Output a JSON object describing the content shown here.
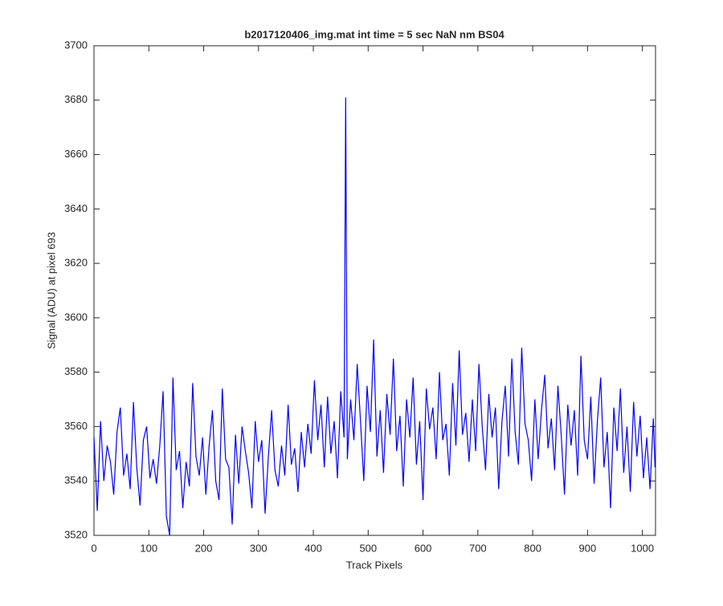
{
  "chart_data": {
    "type": "line",
    "title": "b2017120406_img.mat int time = 5 sec  NaN nm BS04",
    "xlabel": "Track Pixels",
    "ylabel": "Signal (ADU) at pixel 693",
    "xlim": [
      0,
      1024
    ],
    "ylim": [
      3520,
      3700
    ],
    "xticks": [
      0,
      100,
      200,
      300,
      400,
      500,
      600,
      700,
      800,
      900,
      1000
    ],
    "yticks": [
      3520,
      3540,
      3560,
      3580,
      3600,
      3620,
      3640,
      3660,
      3680,
      3700
    ],
    "grid": false,
    "series": [
      {
        "color": "#0000ff",
        "x": [
          0,
          6,
          12,
          18,
          24,
          30,
          36,
          42,
          48,
          54,
          60,
          66,
          72,
          78,
          84,
          90,
          96,
          102,
          108,
          114,
          120,
          126,
          132,
          138,
          144,
          150,
          156,
          162,
          168,
          174,
          180,
          186,
          192,
          198,
          204,
          210,
          216,
          222,
          228,
          234,
          240,
          246,
          252,
          258,
          264,
          270,
          276,
          282,
          288,
          294,
          300,
          306,
          312,
          318,
          324,
          330,
          336,
          342,
          348,
          354,
          360,
          366,
          372,
          378,
          384,
          390,
          396,
          402,
          408,
          414,
          420,
          426,
          432,
          438,
          444,
          450,
          456,
          459,
          462,
          468,
          474,
          480,
          486,
          492,
          498,
          504,
          510,
          516,
          522,
          528,
          534,
          540,
          546,
          552,
          558,
          564,
          570,
          576,
          582,
          588,
          594,
          600,
          606,
          612,
          618,
          624,
          630,
          636,
          642,
          648,
          654,
          660,
          666,
          672,
          678,
          684,
          690,
          696,
          702,
          708,
          714,
          720,
          726,
          732,
          738,
          744,
          750,
          756,
          762,
          768,
          774,
          780,
          786,
          792,
          798,
          804,
          810,
          816,
          822,
          828,
          834,
          840,
          846,
          852,
          858,
          864,
          870,
          876,
          882,
          888,
          894,
          900,
          906,
          912,
          918,
          924,
          930,
          936,
          942,
          948,
          954,
          960,
          966,
          972,
          978,
          984,
          990,
          996,
          1002,
          1008,
          1014,
          1020,
          1023
        ],
        "values": [
          3556,
          3529,
          3562,
          3540,
          3553,
          3547,
          3535,
          3558,
          3567,
          3542,
          3550,
          3537,
          3569,
          3545,
          3531,
          3555,
          3560,
          3541,
          3548,
          3539,
          3553,
          3573,
          3527,
          3520,
          3578,
          3544,
          3551,
          3530,
          3547,
          3538,
          3576,
          3549,
          3542,
          3556,
          3535,
          3553,
          3566,
          3540,
          3533,
          3574,
          3548,
          3545,
          3524,
          3557,
          3539,
          3560,
          3551,
          3543,
          3530,
          3562,
          3547,
          3555,
          3528,
          3549,
          3566,
          3544,
          3538,
          3553,
          3542,
          3568,
          3546,
          3552,
          3536,
          3558,
          3545,
          3561,
          3550,
          3577,
          3555,
          3568,
          3545,
          3571,
          3550,
          3562,
          3541,
          3573,
          3556,
          3681,
          3548,
          3570,
          3555,
          3583,
          3562,
          3540,
          3575,
          3558,
          3592,
          3549,
          3566,
          3543,
          3572,
          3557,
          3585,
          3551,
          3564,
          3538,
          3570,
          3556,
          3578,
          3546,
          3562,
          3533,
          3574,
          3559,
          3567,
          3548,
          3580,
          3555,
          3561,
          3542,
          3576,
          3553,
          3588,
          3557,
          3565,
          3547,
          3570,
          3551,
          3583,
          3560,
          3544,
          3572,
          3556,
          3567,
          3537,
          3562,
          3575,
          3549,
          3585,
          3558,
          3546,
          3589,
          3561,
          3555,
          3540,
          3570,
          3548,
          3566,
          3579,
          3552,
          3563,
          3544,
          3575,
          3557,
          3535,
          3568,
          3553,
          3566,
          3542,
          3586,
          3555,
          3548,
          3571,
          3539,
          3562,
          3578,
          3545,
          3558,
          3530,
          3567,
          3551,
          3574,
          3543,
          3560,
          3536,
          3569,
          3549,
          3564,
          3541,
          3556,
          3537,
          3563,
          3545
        ]
      }
    ]
  }
}
